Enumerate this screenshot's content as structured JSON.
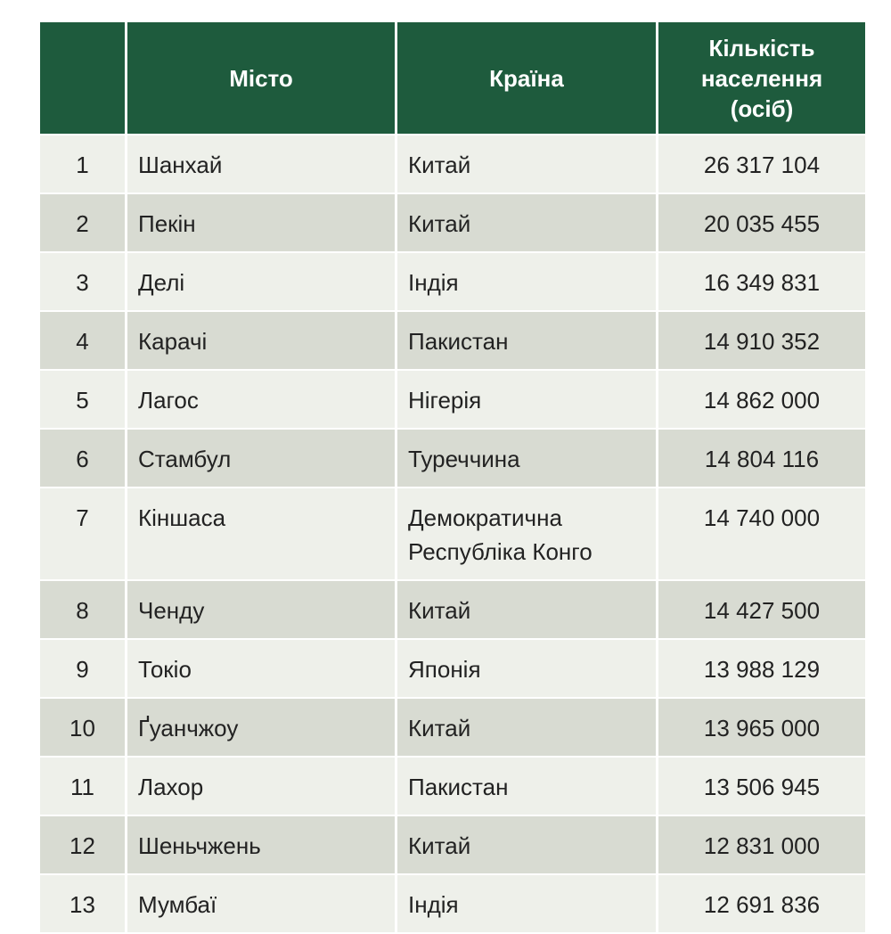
{
  "table": {
    "header": [
      "",
      "Місто",
      "Країна",
      "Кількість населення (осіб)"
    ],
    "rows": [
      [
        1,
        "Шанхай",
        "Китай",
        "26 317 104"
      ],
      [
        2,
        "Пекін",
        "Китай",
        "20 035 455"
      ],
      [
        3,
        "Делі",
        "Індія",
        "16 349 831"
      ],
      [
        4,
        "Карачі",
        "Пакистан",
        "14 910 352"
      ],
      [
        5,
        "Лагос",
        "Нігерія",
        "14 862 000"
      ],
      [
        6,
        "Стамбул",
        "Туреччина",
        "14 804 116"
      ],
      [
        7,
        "Кіншаса",
        "Демократична Республіка Конго",
        "14 740 000"
      ],
      [
        8,
        "Ченду",
        "Китай",
        "14 427 500"
      ],
      [
        9,
        "Токіо",
        "Японія",
        "13 988 129"
      ],
      [
        10,
        "Ґуанчжоу",
        "Китай",
        "13 965 000"
      ],
      [
        11,
        "Лахор",
        "Пакистан",
        "13 506 945"
      ],
      [
        12,
        "Шеньчжень",
        "Китай",
        "12 831 000"
      ],
      [
        13,
        "Мумбаї",
        "Індія",
        "12 691 836"
      ]
    ]
  }
}
